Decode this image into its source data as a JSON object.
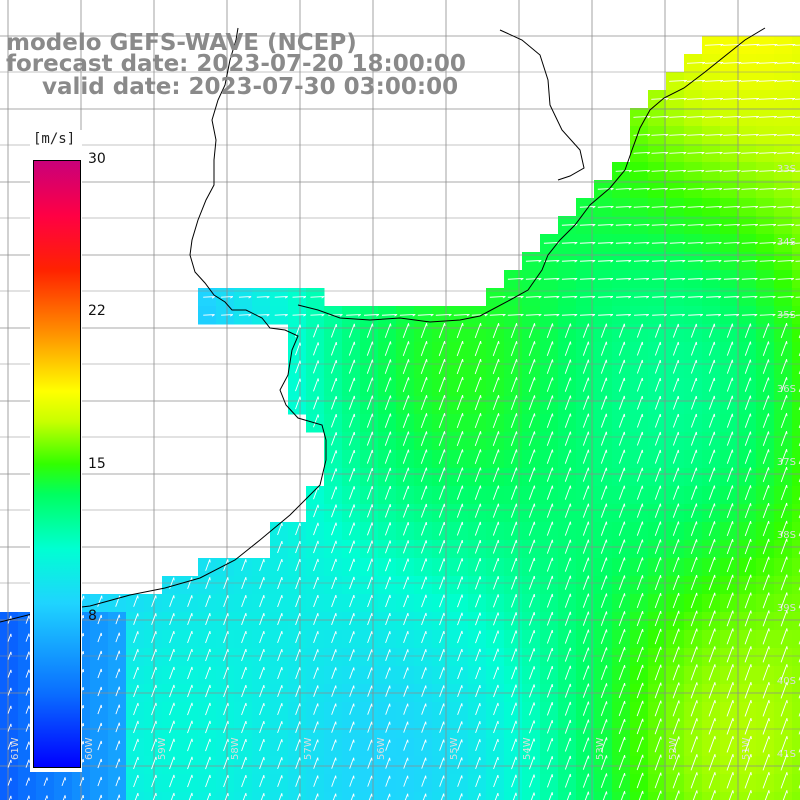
{
  "title": {
    "line1": "modelo GEFS-WAVE (NCEP)",
    "line2": "forecast date: 2023-07-20 18:00:00",
    "line3": "valid date: 2023-07-30 03:00:00"
  },
  "legend": {
    "unit": "[m/s]",
    "ticks": [
      "30",
      "22",
      "15",
      "8"
    ]
  },
  "lat_labels": [
    "33S",
    "34S",
    "35S",
    "36S",
    "37S",
    "38S",
    "39S",
    "40S",
    "41S"
  ],
  "lon_labels": [
    "61W",
    "60W",
    "59W",
    "58W",
    "57W",
    "56W",
    "55W",
    "54W",
    "53W",
    "52W",
    "51W"
  ],
  "colors": {
    "land": "#ffffff",
    "grid": "#8c8c8c",
    "coast": "#000000",
    "arrows": "#ffffff",
    "title": "#8a8a8a",
    "low_wind": "#0000ff",
    "mid_wind": "#00ffd2",
    "high_wind": "#32ff00",
    "max_wind": "#c9007a"
  },
  "scale": {
    "min": 0,
    "max": 30,
    "label_values": [
      30,
      22,
      15,
      8
    ]
  }
}
